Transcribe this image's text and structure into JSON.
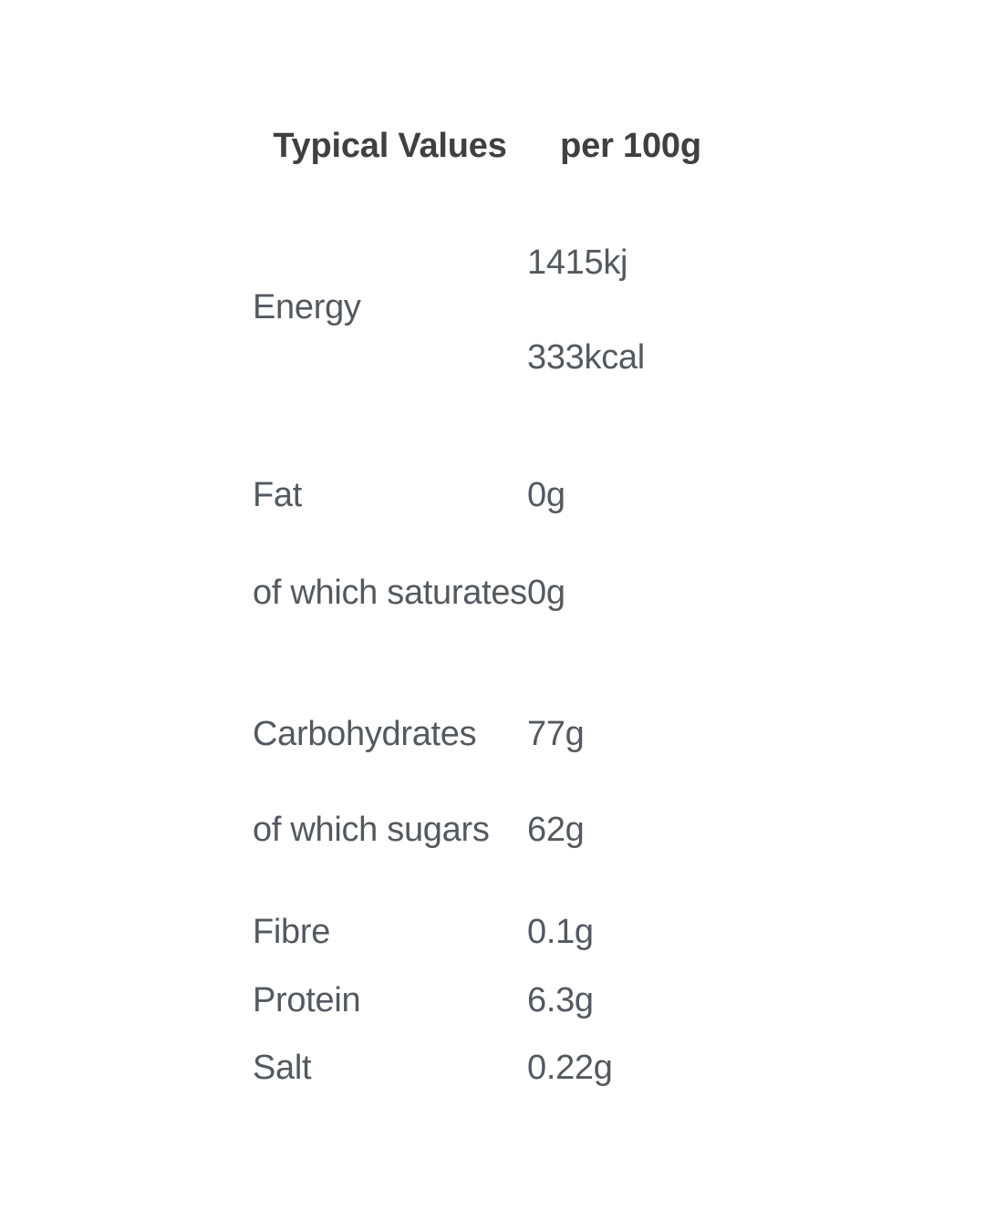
{
  "page": {
    "background": "#ffffff"
  },
  "colors": {
    "header_text": "#404040",
    "body_text": "#54595f"
  },
  "nutrition_table": {
    "header": {
      "label_col": "Typical Values",
      "value_col": "per 100g"
    },
    "energy": {
      "label": "Energy",
      "values": [
        "1415kj",
        "333kcal"
      ]
    },
    "rows": [
      {
        "label": "Fat",
        "value": "0g"
      },
      {
        "label": "of which saturates",
        "value": "0g"
      },
      {
        "label": "Carbohydrates",
        "value": "77g"
      },
      {
        "label": "of which sugars",
        "value": "62g"
      },
      {
        "label": "Fibre",
        "value": "0.1g"
      },
      {
        "label": "Protein",
        "value": "6.3g"
      },
      {
        "label": "Salt",
        "value": "0.22g"
      }
    ]
  }
}
